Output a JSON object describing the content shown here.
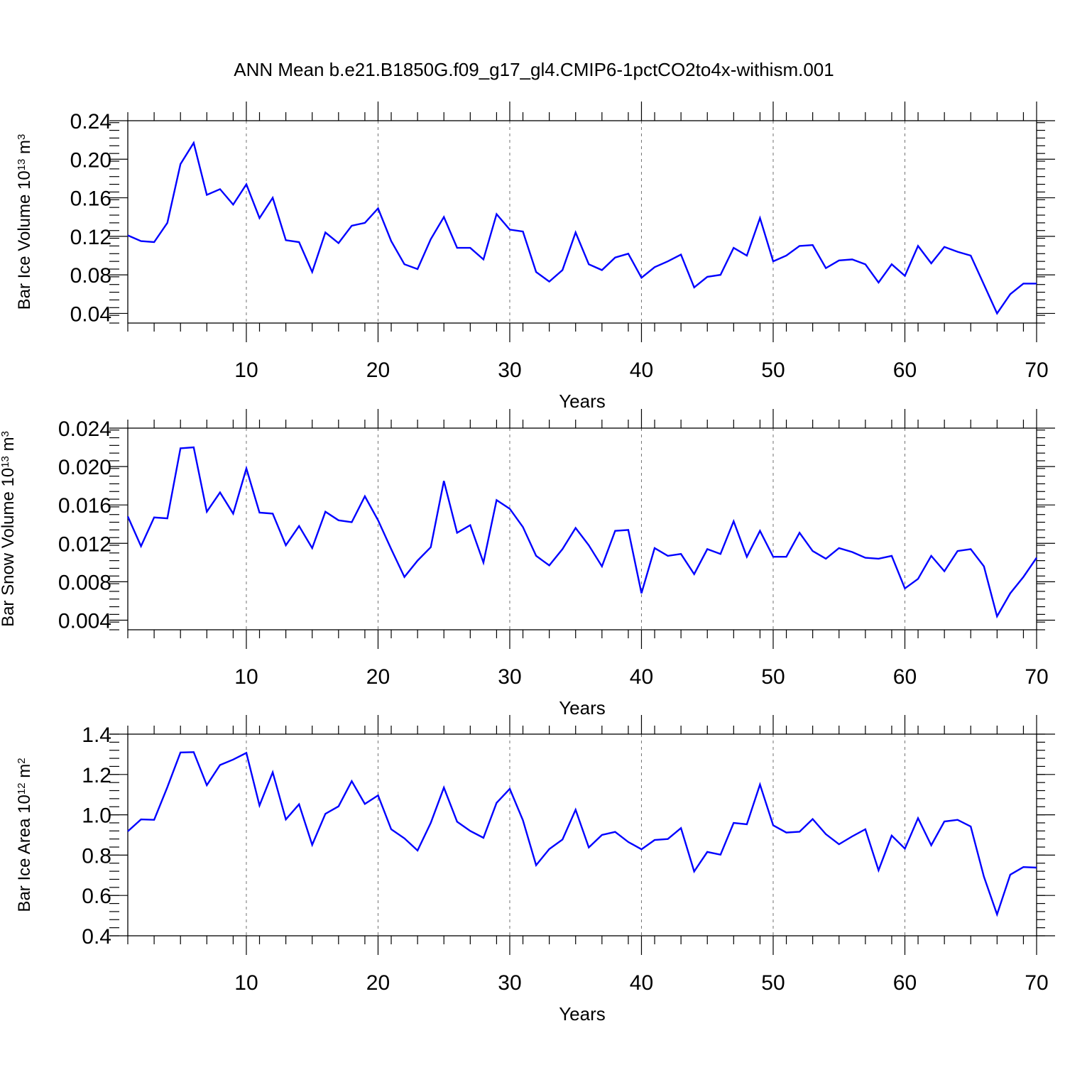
{
  "title": "ANN Mean b.e21.B1850G.f09_g17_gl4.CMIP6-1pctCO2to4x-withism.001",
  "line_color": "#0000ff",
  "chart_data": [
    {
      "type": "line",
      "ylabel_main": "Bar Ice Volume 10",
      "ylabel_exp": "13",
      "ylabel_unit": " m",
      "ylabel_unit_exp": "3",
      "xlabel": "Years",
      "xlim": [
        1,
        70
      ],
      "ylim": [
        0.03,
        0.24
      ],
      "yticks": [
        "0.04",
        "0.08",
        "0.12",
        "0.16",
        "0.20",
        "0.24"
      ],
      "ytick_values": [
        0.04,
        0.08,
        0.12,
        0.16,
        0.2,
        0.24
      ],
      "xticks": [
        "10",
        "20",
        "30",
        "40",
        "50",
        "60",
        "70"
      ],
      "xtick_values": [
        10,
        20,
        30,
        40,
        50,
        60,
        70
      ],
      "grid": "vertical dashed at major x ticks",
      "values": [
        0.121,
        0.115,
        0.114,
        0.134,
        0.195,
        0.217,
        0.163,
        0.169,
        0.153,
        0.174,
        0.139,
        0.16,
        0.116,
        0.114,
        0.083,
        0.124,
        0.113,
        0.131,
        0.134,
        0.149,
        0.115,
        0.091,
        0.086,
        0.117,
        0.14,
        0.108,
        0.108,
        0.096,
        0.143,
        0.127,
        0.125,
        0.083,
        0.073,
        0.085,
        0.124,
        0.091,
        0.085,
        0.098,
        0.102,
        0.077,
        0.088,
        0.094,
        0.101,
        0.067,
        0.078,
        0.08,
        0.108,
        0.1,
        0.139,
        0.094,
        0.1,
        0.11,
        0.111,
        0.087,
        0.095,
        0.096,
        0.091,
        0.072,
        0.091,
        0.079,
        0.11,
        0.092,
        0.109,
        0.104,
        0.1,
        0.07,
        0.04,
        0.06,
        0.071,
        0.071
      ]
    },
    {
      "type": "line",
      "ylabel_main": "Bar Snow Volume 10",
      "ylabel_exp": "13",
      "ylabel_unit": " m",
      "ylabel_unit_exp": "3",
      "xlabel": "Years",
      "xlim": [
        1,
        70
      ],
      "ylim": [
        0.003,
        0.024
      ],
      "yticks": [
        "0.004",
        "0.008",
        "0.012",
        "0.016",
        "0.020",
        "0.024"
      ],
      "ytick_values": [
        0.004,
        0.008,
        0.012,
        0.016,
        0.02,
        0.024
      ],
      "xticks": [
        "10",
        "20",
        "30",
        "40",
        "50",
        "60",
        "70"
      ],
      "xtick_values": [
        10,
        20,
        30,
        40,
        50,
        60,
        70
      ],
      "grid": "vertical dashed at major x ticks",
      "values": [
        0.0148,
        0.0117,
        0.0147,
        0.0146,
        0.0219,
        0.022,
        0.0153,
        0.0173,
        0.0151,
        0.0198,
        0.0152,
        0.0151,
        0.0118,
        0.0138,
        0.0115,
        0.0153,
        0.0144,
        0.0142,
        0.0169,
        0.0144,
        0.0114,
        0.0085,
        0.0102,
        0.0116,
        0.0185,
        0.0131,
        0.0139,
        0.01,
        0.0165,
        0.0156,
        0.0137,
        0.0107,
        0.0097,
        0.0114,
        0.0136,
        0.0118,
        0.0096,
        0.0133,
        0.0134,
        0.0068,
        0.0115,
        0.0107,
        0.0109,
        0.0088,
        0.0114,
        0.0109,
        0.0143,
        0.0106,
        0.0133,
        0.0106,
        0.0106,
        0.0131,
        0.0112,
        0.0104,
        0.0115,
        0.0111,
        0.0105,
        0.0104,
        0.0107,
        0.0073,
        0.0083,
        0.0107,
        0.0091,
        0.0112,
        0.0114,
        0.0096,
        0.0044,
        0.0068,
        0.0085,
        0.0105
      ]
    },
    {
      "type": "line",
      "ylabel_main": "Bar Ice Area 10",
      "ylabel_exp": "12",
      "ylabel_unit": " m",
      "ylabel_unit_exp": "2",
      "xlabel": "Years",
      "xlim": [
        1,
        70
      ],
      "ylim": [
        0.4,
        1.4
      ],
      "yticks": [
        "0.4",
        "0.6",
        "0.8",
        "1.0",
        "1.2",
        "1.4"
      ],
      "ytick_values": [
        0.4,
        0.6,
        0.8,
        1.0,
        1.2,
        1.4
      ],
      "xticks": [
        "10",
        "20",
        "30",
        "40",
        "50",
        "60",
        "70"
      ],
      "xtick_values": [
        10,
        20,
        30,
        40,
        50,
        60,
        70
      ],
      "grid": "vertical dashed at major x ticks",
      "values": [
        0.918,
        0.977,
        0.975,
        1.137,
        1.309,
        1.311,
        1.147,
        1.247,
        1.274,
        1.307,
        1.046,
        1.211,
        0.977,
        1.052,
        0.851,
        1.005,
        1.042,
        1.167,
        1.054,
        1.096,
        0.928,
        0.883,
        0.823,
        0.96,
        1.135,
        0.966,
        0.92,
        0.886,
        1.059,
        1.129,
        0.973,
        0.75,
        0.83,
        0.877,
        1.025,
        0.838,
        0.9,
        0.915,
        0.865,
        0.829,
        0.875,
        0.88,
        0.934,
        0.719,
        0.816,
        0.802,
        0.96,
        0.953,
        1.15,
        0.948,
        0.912,
        0.916,
        0.979,
        0.904,
        0.854,
        0.893,
        0.928,
        0.725,
        0.897,
        0.832,
        0.983,
        0.849,
        0.967,
        0.975,
        0.942,
        0.693,
        0.506,
        0.703,
        0.741,
        0.738
      ]
    }
  ]
}
